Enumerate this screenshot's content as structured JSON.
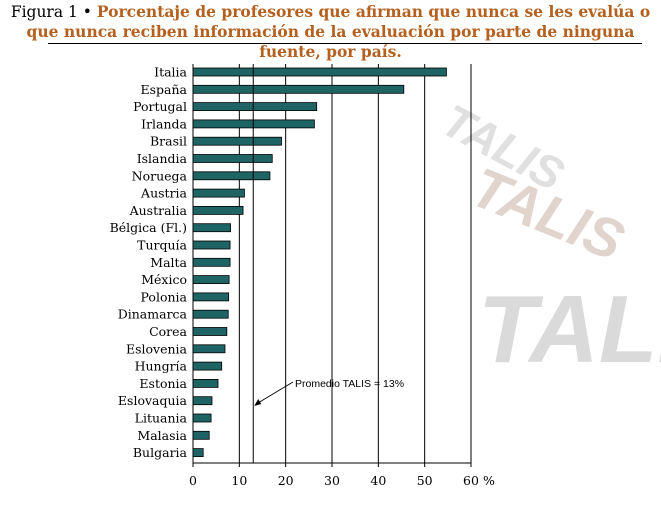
{
  "figure_label": "Figura 1 •",
  "figure_title": "Porcentaje de profesores que afirman que nunca se les evalúa o que nunca reciben información de la evaluación por parte de ninguna fuente, por país.",
  "watermark_text": "TALIS",
  "chart_data": {
    "type": "bar",
    "orientation": "horizontal",
    "categories": [
      "Italia",
      "España",
      "Portugal",
      "Irlanda",
      "Brasil",
      "Islandia",
      "Noruega",
      "Austria",
      "Australia",
      "Bélgica (Fl.)",
      "Turquía",
      "Malta",
      "México",
      "Polonia",
      "Dinamarca",
      "Corea",
      "Eslovenia",
      "Hungría",
      "Estonia",
      "Eslovaquia",
      "Lituania",
      "Malasia",
      "Bulgaria"
    ],
    "values": [
      54.7,
      45.5,
      26.7,
      26.2,
      19.1,
      17.1,
      16.6,
      11.1,
      10.8,
      8.1,
      8.0,
      8.0,
      7.8,
      7.7,
      7.6,
      7.3,
      6.9,
      6.2,
      5.4,
      4.1,
      3.9,
      3.5,
      2.2
    ],
    "xlim": [
      0,
      60
    ],
    "xticks": [
      0,
      10,
      20,
      30,
      40,
      50,
      60
    ],
    "unit": "%",
    "reference_line": {
      "value": 13,
      "label": "Promedio TALIS = 13%"
    },
    "bar_color": "#1f6464",
    "grid": "vertical lines at major ticks"
  }
}
